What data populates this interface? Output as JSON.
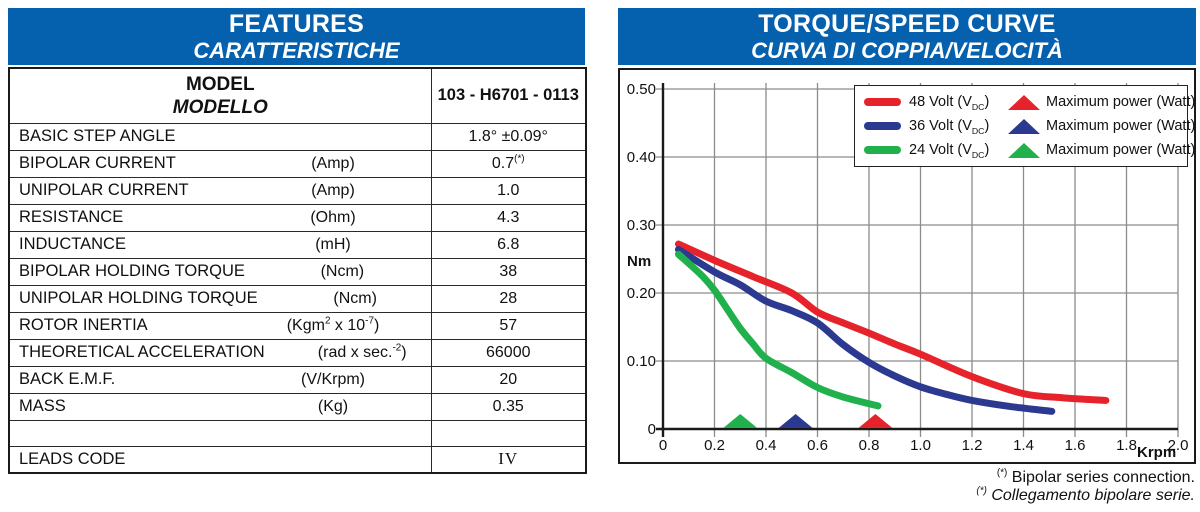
{
  "left_panel": {
    "title_en": "FEATURES",
    "title_it": "CARATTERISTICHE",
    "model_label_en": "MODEL",
    "model_label_it": "MODELLO",
    "model_value": "103 - H6701 - 0113",
    "rows": [
      {
        "label": "BASIC STEP ANGLE",
        "unit": "",
        "value": "1.8° ±0.09°"
      },
      {
        "label": "BIPOLAR CURRENT",
        "unit": "(Amp)",
        "value": "0.7^{(*)}"
      },
      {
        "label": "UNIPOLAR CURRENT",
        "unit": "(Amp)",
        "value": "1.0"
      },
      {
        "label": "RESISTANCE",
        "unit": "(Ohm)",
        "value": "4.3"
      },
      {
        "label": "INDUCTANCE",
        "unit": "(mH)",
        "value": "6.8"
      },
      {
        "label": "BIPOLAR HOLDING TORQUE",
        "unit": "(Ncm)",
        "value": "38"
      },
      {
        "label": "UNIPOLAR HOLDING TORQUE",
        "unit": "(Ncm)",
        "value": "28"
      },
      {
        "label": "ROTOR INERTIA",
        "unit": "(Kgm^{2} x 10^{-7})",
        "value": "57"
      },
      {
        "label": "THEORETICAL ACCELERATION",
        "unit": "(rad x sec.^{-2})",
        "value": "66000"
      },
      {
        "label": "BACK E.M.F.",
        "unit": "(V/Krpm)",
        "value": "20"
      },
      {
        "label": "MASS",
        "unit": "(Kg)",
        "value": "0.35"
      },
      {
        "label": "",
        "unit": "",
        "value": "",
        "empty": true
      },
      {
        "label": "LEADS CODE",
        "unit": "",
        "value": "IV",
        "serif": true
      }
    ]
  },
  "right_panel": {
    "title_en": "TORQUE/SPEED CURVE",
    "title_it": "CURVA DI COPPIA/VELOCITÀ",
    "footnote_en": "^{(*)} Bipolar series connection.",
    "footnote_it": "^{(*)} Collegamento bipolare serie."
  },
  "chart_data": {
    "type": "line",
    "title": "TORQUE/SPEED CURVE",
    "xlabel": "Krpm",
    "ylabel": "Nm",
    "xlim": [
      0,
      2.0
    ],
    "ylim": [
      0,
      0.5
    ],
    "grid": true,
    "legend_position": "top-right",
    "xticks": [
      "0",
      "0.2",
      "0.4",
      "0.6",
      "0.8",
      "1.0",
      "1.2",
      "1.4",
      "1.6",
      "1.8",
      "2.0"
    ],
    "yticks": [
      "0",
      "0.10",
      "0.20",
      "0.30",
      "0.40",
      "0.50"
    ],
    "max_power_label": "Maximum power (Watt)",
    "series": [
      {
        "name": "48 Volt (V_{DC})",
        "color": "#e6232b",
        "points": [
          [
            0.06,
            0.272
          ],
          [
            0.2,
            0.248
          ],
          [
            0.35,
            0.224
          ],
          [
            0.5,
            0.2
          ],
          [
            0.6,
            0.172
          ],
          [
            0.7,
            0.156
          ],
          [
            0.8,
            0.141
          ],
          [
            0.9,
            0.125
          ],
          [
            1.0,
            0.11
          ],
          [
            1.2,
            0.077
          ],
          [
            1.4,
            0.052
          ],
          [
            1.55,
            0.046
          ],
          [
            1.72,
            0.042
          ]
        ],
        "max_power_marker_x": 0.825
      },
      {
        "name": "36 Volt (V_{DC})",
        "color": "#2b3a90",
        "points": [
          [
            0.06,
            0.264
          ],
          [
            0.2,
            0.231
          ],
          [
            0.3,
            0.212
          ],
          [
            0.4,
            0.188
          ],
          [
            0.5,
            0.174
          ],
          [
            0.6,
            0.156
          ],
          [
            0.7,
            0.124
          ],
          [
            0.8,
            0.098
          ],
          [
            0.9,
            0.078
          ],
          [
            1.0,
            0.062
          ],
          [
            1.1,
            0.051
          ],
          [
            1.2,
            0.042
          ],
          [
            1.35,
            0.033
          ],
          [
            1.51,
            0.026
          ]
        ],
        "max_power_marker_x": 0.515
      },
      {
        "name": "24 Volt (V_{DC})",
        "color": "#21b14c",
        "points": [
          [
            0.06,
            0.257
          ],
          [
            0.15,
            0.226
          ],
          [
            0.2,
            0.204
          ],
          [
            0.25,
            0.176
          ],
          [
            0.3,
            0.148
          ],
          [
            0.35,
            0.125
          ],
          [
            0.4,
            0.104
          ],
          [
            0.5,
            0.083
          ],
          [
            0.6,
            0.061
          ],
          [
            0.7,
            0.047
          ],
          [
            0.835,
            0.034
          ]
        ],
        "max_power_marker_x": 0.3
      }
    ]
  },
  "colors": {
    "header_blue": "#0561ad",
    "grid_gray": "#8c8c8c",
    "axis_black": "#1a1a1a",
    "series_red": "#e6232b",
    "series_blue": "#2b3a90",
    "series_green": "#21b14c"
  }
}
